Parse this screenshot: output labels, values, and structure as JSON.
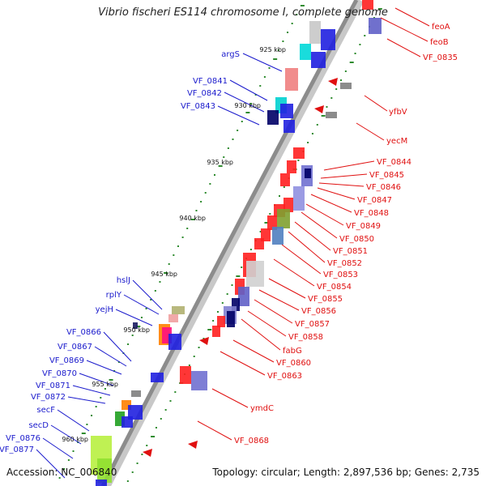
{
  "title": "Vibrio fischeri ES114 chromosome I, complete genome",
  "accession": "Accession: NC_006840",
  "summary": "Topology: circular; Length: 2,897,536 bp; Genes: 2,735",
  "colors": {
    "forward_label": "#1a1acc",
    "reverse_label": "#e01010",
    "backbone": "#8c8c8c",
    "tick": "#2e8b2e"
  },
  "kbp_ticks": [
    "925 kbp",
    "930 kbp",
    "935 kbp",
    "940 kbp",
    "945 kbp",
    "950 kbp",
    "955 kbp",
    "960 kbp"
  ],
  "left_labels": [
    "argS",
    "VF_0841",
    "VF_0842",
    "VF_0843",
    "hslJ",
    "rplY",
    "yejH",
    "VF_0866",
    "VF_0867",
    "VF_0869",
    "VF_0870",
    "VF_0871",
    "VF_0872",
    "secF",
    "secD",
    "VF_0876",
    "VF_0877"
  ],
  "right_labels": [
    "feoA",
    "feoB",
    "VF_0835",
    "yfbV",
    "yecM",
    "VF_0844",
    "VF_0845",
    "VF_0846",
    "VF_0847",
    "VF_0848",
    "VF_0849",
    "VF_0850",
    "VF_0851",
    "VF_0852",
    "VF_0853",
    "VF_0854",
    "VF_0855",
    "VF_0856",
    "VF_0857",
    "VF_0858",
    "fabG",
    "VF_0860",
    "VF_0863",
    "ymdC",
    "VF_0868"
  ]
}
